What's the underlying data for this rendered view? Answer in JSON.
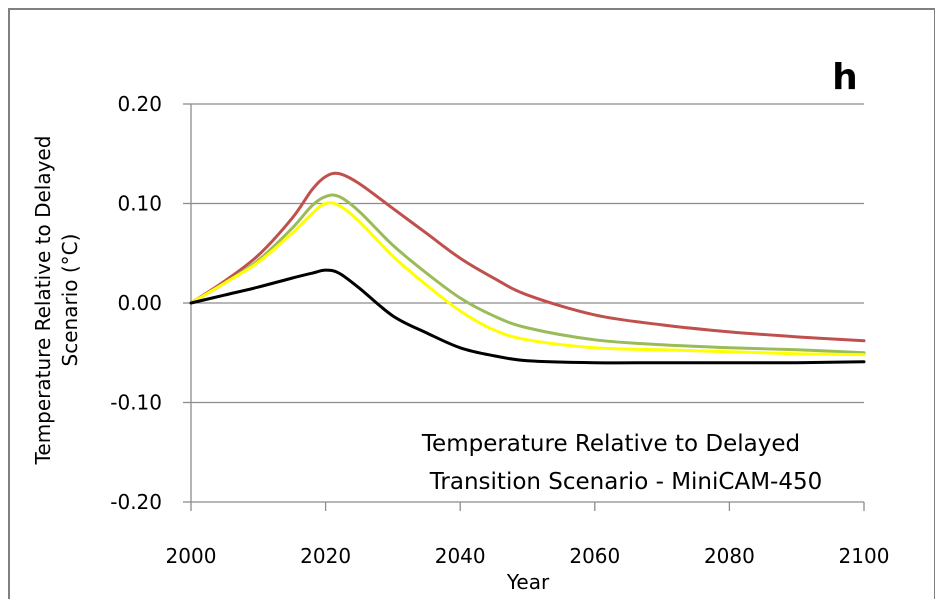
{
  "chart_data": {
    "type": "line",
    "panel_label": "h",
    "title": "",
    "xlabel": "Year",
    "ylabel": "Temperature Relative to Delayed Scenario (°C)",
    "ylabel_lines": [
      "Temperature Relative to Delayed",
      "Scenario (°C)"
    ],
    "annotation_lines": [
      "Temperature Relative to Delayed",
      "Transition Scenario - MiniCAM-450"
    ],
    "xlim": [
      2000,
      2100
    ],
    "ylim": [
      -0.2,
      0.2
    ],
    "x_ticks": [
      2000,
      2020,
      2040,
      2060,
      2080,
      2100
    ],
    "x_tick_labels": [
      "2000",
      "2020",
      "2040",
      "2060",
      "2080",
      "2100"
    ],
    "y_ticks": [
      0.2,
      0.1,
      0.0,
      -0.1,
      -0.2
    ],
    "y_tick_labels": [
      "0.20",
      "0.10",
      "0.00",
      "-0.10",
      "-0.20"
    ],
    "grid": "horizontal",
    "legend": "none",
    "x": [
      2000,
      2005,
      2010,
      2015,
      2018,
      2020,
      2022,
      2025,
      2030,
      2035,
      2040,
      2045,
      2050,
      2060,
      2070,
      2080,
      2090,
      2100
    ],
    "series": [
      {
        "color": "#c0504d",
        "values": [
          0.0,
          0.022,
          0.048,
          0.085,
          0.114,
          0.127,
          0.13,
          0.12,
          0.095,
          0.07,
          0.045,
          0.025,
          0.008,
          -0.012,
          -0.022,
          -0.029,
          -0.034,
          -0.038
        ]
      },
      {
        "color": "#9bbb59",
        "values": [
          0.0,
          0.02,
          0.043,
          0.075,
          0.098,
          0.107,
          0.107,
          0.092,
          0.058,
          0.03,
          0.005,
          -0.013,
          -0.025,
          -0.037,
          -0.042,
          -0.045,
          -0.047,
          -0.05
        ]
      },
      {
        "color": "#ffff00",
        "values": [
          0.0,
          0.02,
          0.041,
          0.07,
          0.09,
          0.1,
          0.098,
          0.082,
          0.047,
          0.018,
          -0.008,
          -0.027,
          -0.037,
          -0.045,
          -0.047,
          -0.049,
          -0.051,
          -0.052
        ]
      },
      {
        "color": "#000000",
        "values": [
          0.0,
          0.008,
          0.016,
          0.025,
          0.03,
          0.033,
          0.03,
          0.015,
          -0.013,
          -0.03,
          -0.045,
          -0.053,
          -0.058,
          -0.06,
          -0.06,
          -0.06,
          -0.06,
          -0.059
        ]
      }
    ]
  }
}
